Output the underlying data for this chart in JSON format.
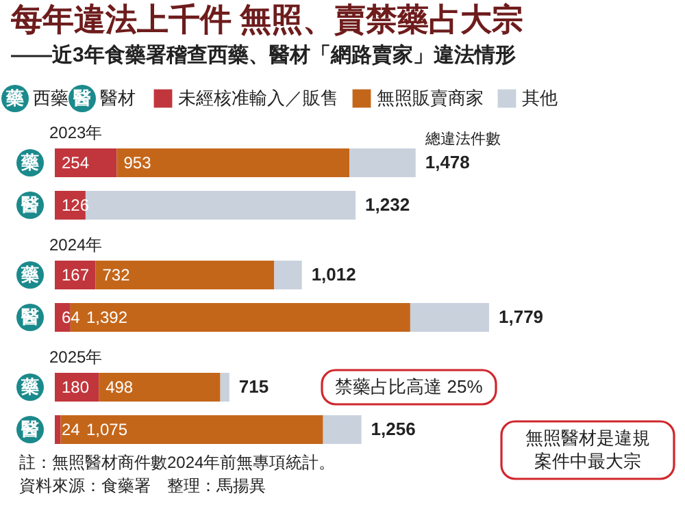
{
  "chart_data": {
    "type": "bar",
    "orientation": "horizontal",
    "stacked": true,
    "title": "每年違法上千件  無照、賣禁藥占大宗",
    "subtitle": "——近3年食藥署稽查西藥、醫材「網路賣家」違法情形",
    "categories": [
      "藥",
      "醫",
      "藥",
      "醫",
      "藥",
      "醫"
    ],
    "series": [
      {
        "name": "未經核准輸入／販售",
        "color": "#c1363c",
        "values": [
          254,
          126,
          167,
          64,
          180,
          24
        ],
        "value_labels": [
          "254",
          "126",
          "167",
          "64",
          "180",
          "24"
        ]
      },
      {
        "name": "無照販賣商家",
        "color": "#c4661a",
        "values": [
          953,
          null,
          732,
          1392,
          498,
          1075
        ],
        "value_labels": [
          "953",
          null,
          "732",
          "1,392",
          "498",
          "1,075"
        ]
      },
      {
        "name": "其他",
        "color": "#c9d1dd",
        "values": [
          271,
          1106,
          113,
          323,
          37,
          157
        ]
      }
    ],
    "totals": [
      "1,478",
      "1,232",
      "1,012",
      "1,779",
      "715",
      "1,256"
    ],
    "legend": "top",
    "annotations": [
      "2023年",
      "2024年",
      "2025年",
      "總違法件數",
      "禁藥占比高達 25%",
      "無照醫材是違規案件中最大宗",
      "註：無照醫材商件數2024年前無專項統計。",
      "資料來源：食藥署　整理：馬揚異",
      "西藥",
      "醫材"
    ]
  }
}
